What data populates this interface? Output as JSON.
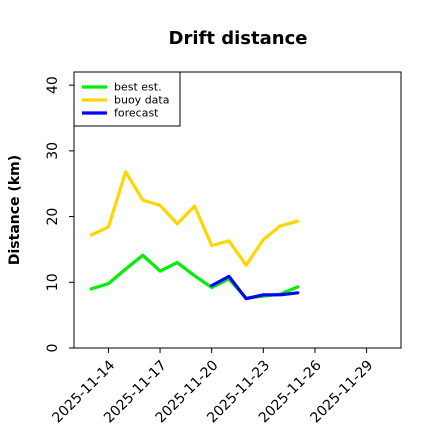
{
  "chart_data": {
    "type": "line",
    "title": "Drift distance",
    "xlabel": "",
    "ylabel": "Distance (km)",
    "ylim": [
      0,
      42
    ],
    "yticks": [
      0,
      10,
      20,
      30,
      40
    ],
    "xlim": [
      "2025-11-12",
      "2025-11-31"
    ],
    "xticks": [
      "2025-11-14",
      "2025-11-17",
      "2025-11-20",
      "2025-11-23",
      "2025-11-26",
      "2025-11-29"
    ],
    "highlighted_xtick": "2025-11-20",
    "highlight_color": "#228b22",
    "legend_position": "top-left",
    "grid": false,
    "series": [
      {
        "name": "best est.",
        "color": "#00ee00",
        "x": [
          "2025-11-13",
          "2025-11-14",
          "2025-11-15",
          "2025-11-16",
          "2025-11-17",
          "2025-11-18",
          "2025-11-19",
          "2025-11-20",
          "2025-11-21",
          "2025-11-22",
          "2025-11-23",
          "2025-11-24",
          "2025-11-25"
        ],
        "values": [
          9.0,
          9.8,
          12.0,
          14.1,
          11.7,
          13.0,
          11.0,
          9.2,
          10.5,
          7.6,
          7.9,
          8.2,
          9.3
        ]
      },
      {
        "name": "buoy data",
        "color": "#ffd700",
        "x": [
          "2025-11-13",
          "2025-11-14",
          "2025-11-15",
          "2025-11-16",
          "2025-11-17",
          "2025-11-18",
          "2025-11-19",
          "2025-11-20",
          "2025-11-21",
          "2025-11-22",
          "2025-11-23",
          "2025-11-24",
          "2025-11-25"
        ],
        "values": [
          17.2,
          18.4,
          26.8,
          22.5,
          21.7,
          18.9,
          21.6,
          15.6,
          16.3,
          12.6,
          16.5,
          18.6,
          19.3
        ]
      },
      {
        "name": "forecast",
        "color": "#0000ff",
        "x": [
          "2025-11-20",
          "2025-11-21",
          "2025-11-22",
          "2025-11-23",
          "2025-11-24",
          "2025-11-25"
        ],
        "values": [
          9.5,
          10.9,
          7.5,
          8.1,
          8.1,
          8.4
        ]
      }
    ]
  }
}
